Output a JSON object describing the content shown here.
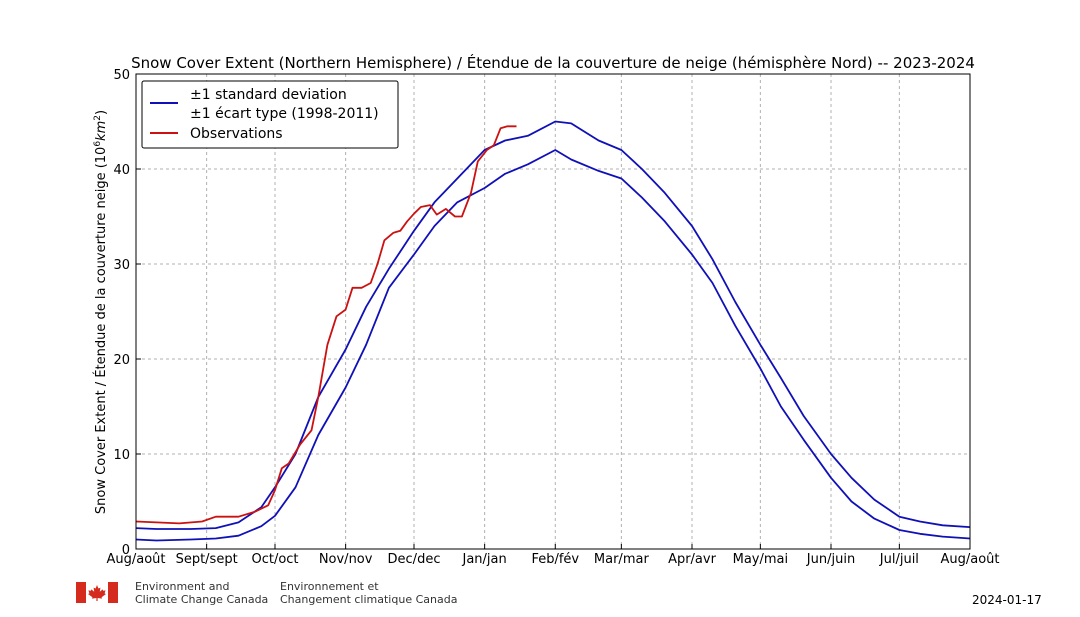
{
  "chart_data": {
    "type": "line",
    "title": "Snow Cover Extent (Northern Hemisphere) / Étendue de la couverture de neige (hémisphère Nord) -- 2023-2024",
    "ylabel": "Snow Cover Extent / Étendue de la couverture neige (10⁶km²)",
    "ylim": [
      0,
      50
    ],
    "yticks": [
      0,
      10,
      20,
      30,
      40,
      50
    ],
    "xlim": [
      "2023-08-01",
      "2024-08-01"
    ],
    "xtick_labels": [
      "Aug/août",
      "Sept/sept",
      "Oct/oct",
      "Nov/nov",
      "Dec/dec",
      "Jan/jan",
      "Feb/fév",
      "Mar/mar",
      "Apr/avr",
      "May/mai",
      "Jun/juin",
      "Jul/juil",
      "Aug/août"
    ],
    "xtick_dates": [
      "2023-08-01",
      "2023-09-01",
      "2023-10-01",
      "2023-11-01",
      "2023-12-01",
      "2024-01-01",
      "2024-02-01",
      "2024-03-01",
      "2024-04-01",
      "2024-05-01",
      "2024-06-01",
      "2024-07-01",
      "2024-08-01"
    ],
    "grid": true,
    "legend": {
      "placement": "top-left",
      "entries": [
        {
          "label_line1": "±1 standard deviation",
          "label_line2": "±1 écart type (1998-2011)",
          "color": "#1010b8"
        },
        {
          "label_line1": "Observations",
          "color": "#cc1111"
        }
      ]
    },
    "series": [
      {
        "name": "±1 standard deviation ±1 écart type (1998-2011)",
        "role": "upper",
        "color": "#1010b8",
        "x": [
          "2023-08-01",
          "2023-08-10",
          "2023-08-25",
          "2023-09-05",
          "2023-09-15",
          "2023-09-25",
          "2023-10-01",
          "2023-10-10",
          "2023-10-20",
          "2023-11-01",
          "2023-11-10",
          "2023-11-20",
          "2023-12-01",
          "2023-12-10",
          "2023-12-20",
          "2024-01-01",
          "2024-01-10",
          "2024-01-20",
          "2024-02-01",
          "2024-02-08",
          "2024-02-20",
          "2024-03-01",
          "2024-03-10",
          "2024-03-20",
          "2024-04-01",
          "2024-04-10",
          "2024-04-20",
          "2024-05-01",
          "2024-05-10",
          "2024-05-20",
          "2024-06-01",
          "2024-06-10",
          "2024-06-20",
          "2024-07-01",
          "2024-07-10",
          "2024-07-20",
          "2024-08-01"
        ],
        "values": [
          2.2,
          2.1,
          2.1,
          2.2,
          2.8,
          4.4,
          6.5,
          10.0,
          16.0,
          21.0,
          25.5,
          29.5,
          33.5,
          36.5,
          39.0,
          42.0,
          43.0,
          43.5,
          45.0,
          44.8,
          43.0,
          42.0,
          40.0,
          37.5,
          34.0,
          30.5,
          26.0,
          21.5,
          18.0,
          14.0,
          10.0,
          7.5,
          5.2,
          3.4,
          2.9,
          2.5,
          2.3
        ]
      },
      {
        "name": "±1 standard deviation ±1 écart type (1998-2011)",
        "role": "lower",
        "color": "#1010b8",
        "x": [
          "2023-08-01",
          "2023-08-10",
          "2023-08-25",
          "2023-09-05",
          "2023-09-15",
          "2023-09-25",
          "2023-10-01",
          "2023-10-10",
          "2023-10-20",
          "2023-11-01",
          "2023-11-10",
          "2023-11-20",
          "2023-12-01",
          "2023-12-10",
          "2023-12-20",
          "2024-01-01",
          "2024-01-10",
          "2024-01-20",
          "2024-02-01",
          "2024-02-08",
          "2024-02-20",
          "2024-03-01",
          "2024-03-10",
          "2024-03-20",
          "2024-04-01",
          "2024-04-10",
          "2024-04-20",
          "2024-05-01",
          "2024-05-10",
          "2024-05-20",
          "2024-06-01",
          "2024-06-10",
          "2024-06-20",
          "2024-07-01",
          "2024-07-10",
          "2024-07-20",
          "2024-08-01"
        ],
        "values": [
          1.0,
          0.9,
          1.0,
          1.1,
          1.4,
          2.4,
          3.5,
          6.5,
          12.0,
          17.0,
          21.5,
          27.5,
          31.0,
          34.0,
          36.5,
          38.0,
          39.5,
          40.5,
          42.0,
          41.0,
          39.8,
          39.0,
          37.0,
          34.5,
          31.0,
          28.0,
          23.5,
          19.0,
          15.0,
          11.5,
          7.5,
          5.0,
          3.2,
          2.0,
          1.6,
          1.3,
          1.1
        ]
      },
      {
        "name": "Observations",
        "color": "#cc1111",
        "x": [
          "2023-08-01",
          "2023-08-10",
          "2023-08-20",
          "2023-08-30",
          "2023-09-05",
          "2023-09-08",
          "2023-09-15",
          "2023-09-22",
          "2023-09-28",
          "2023-10-01",
          "2023-10-04",
          "2023-10-07",
          "2023-10-12",
          "2023-10-17",
          "2023-10-20",
          "2023-10-24",
          "2023-10-28",
          "2023-11-01",
          "2023-11-04",
          "2023-11-08",
          "2023-11-12",
          "2023-11-15",
          "2023-11-18",
          "2023-11-22",
          "2023-11-25",
          "2023-11-28",
          "2023-12-01",
          "2023-12-04",
          "2023-12-08",
          "2023-12-11",
          "2023-12-15",
          "2023-12-19",
          "2023-12-22",
          "2023-12-26",
          "2023-12-29",
          "2024-01-02",
          "2024-01-05",
          "2024-01-08",
          "2024-01-11",
          "2024-01-13",
          "2024-01-15"
        ],
        "values": [
          2.9,
          2.8,
          2.7,
          2.9,
          3.4,
          3.4,
          3.4,
          3.9,
          4.6,
          6.2,
          8.5,
          9.0,
          11.0,
          12.5,
          16.0,
          21.5,
          24.5,
          25.2,
          27.5,
          27.5,
          28.0,
          30.0,
          32.5,
          33.3,
          33.5,
          34.5,
          35.3,
          36.0,
          36.2,
          35.2,
          35.8,
          35.0,
          35.0,
          37.5,
          40.8,
          42.0,
          42.5,
          44.3,
          44.5,
          44.5,
          44.5
        ]
      }
    ]
  },
  "footer": {
    "dept_en_line1": "Environment and",
    "dept_en_line2": "Climate Change Canada",
    "dept_fr_line1": "Environnement et",
    "dept_fr_line2": "Changement climatique Canada",
    "date": "2024-01-17",
    "flag_icon": "canada-flag-icon"
  }
}
